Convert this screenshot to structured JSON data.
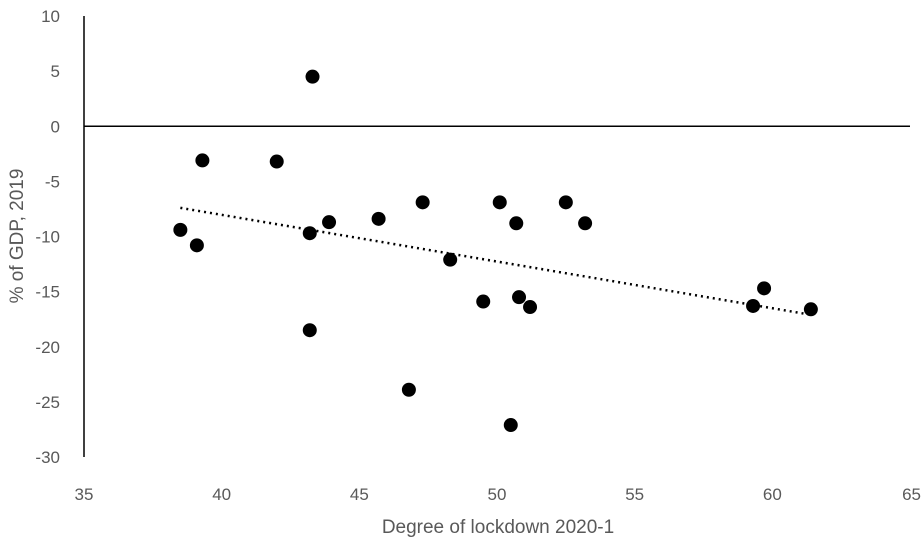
{
  "chart_data": {
    "type": "scatter",
    "title": "",
    "xlabel": "Degree of lockdown 2020-1",
    "ylabel": "% of GDP, 2019",
    "xlim": [
      35,
      65
    ],
    "ylim": [
      -30,
      10
    ],
    "xticks": [
      "35",
      "40",
      "45",
      "50",
      "55",
      "60",
      "65"
    ],
    "yticks": [
      "10",
      "5",
      "0",
      "-5",
      "-10",
      "-15",
      "-20",
      "-25",
      "-30"
    ],
    "grid": false,
    "legend": "none",
    "marker_color": "#000000",
    "points": [
      {
        "x": 38.5,
        "y": -9.4
      },
      {
        "x": 39.1,
        "y": -10.8
      },
      {
        "x": 39.3,
        "y": -3.1
      },
      {
        "x": 42.0,
        "y": -3.2
      },
      {
        "x": 43.2,
        "y": -9.7
      },
      {
        "x": 43.2,
        "y": -18.5
      },
      {
        "x": 43.3,
        "y": 4.5
      },
      {
        "x": 43.9,
        "y": -8.7
      },
      {
        "x": 45.7,
        "y": -8.4
      },
      {
        "x": 46.8,
        "y": -23.9
      },
      {
        "x": 47.3,
        "y": -6.9
      },
      {
        "x": 48.3,
        "y": -12.1
      },
      {
        "x": 49.5,
        "y": -15.9
      },
      {
        "x": 50.1,
        "y": -6.9
      },
      {
        "x": 50.5,
        "y": -27.1
      },
      {
        "x": 50.7,
        "y": -8.8
      },
      {
        "x": 50.8,
        "y": -15.5
      },
      {
        "x": 51.2,
        "y": -16.4
      },
      {
        "x": 52.5,
        "y": -6.9
      },
      {
        "x": 53.2,
        "y": -8.8
      },
      {
        "x": 59.3,
        "y": -16.3
      },
      {
        "x": 59.7,
        "y": -14.7
      },
      {
        "x": 61.4,
        "y": -16.6
      }
    ],
    "trendline": {
      "style": "dotted",
      "x": [
        38.5,
        61.4
      ],
      "y": [
        -7.4,
        -17.1
      ]
    }
  }
}
